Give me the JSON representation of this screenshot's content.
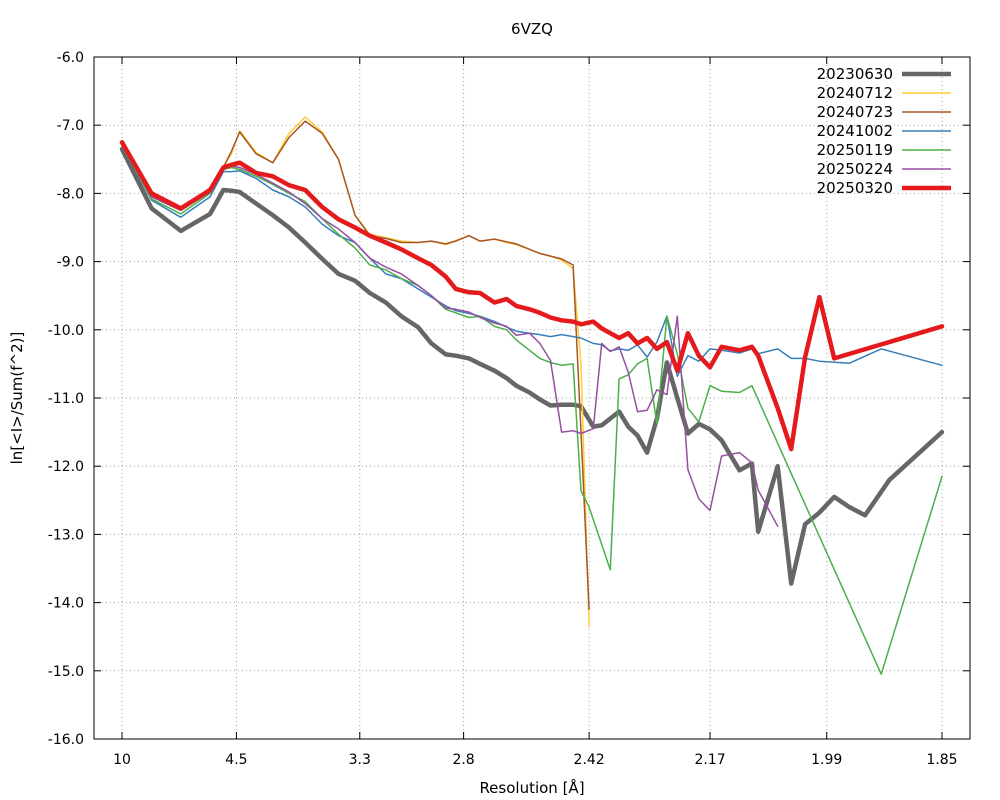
{
  "chart_data": {
    "type": "line",
    "title": "6VZQ",
    "xlabel": "Resolution [Å]",
    "ylabel": "ln[<I>/Sum(f^2)]",
    "x_scale": "inverse-square",
    "x_ticks": [
      "10",
      "4.5",
      "3.3",
      "2.8",
      "2.42",
      "2.17",
      "1.99",
      "1.85"
    ],
    "xlim": [
      10,
      1.85
    ],
    "ylim": [
      -16.0,
      -6.0
    ],
    "y_ticks": [
      "-6.0",
      "-7.0",
      "-8.0",
      "-9.0",
      "-10.0",
      "-11.0",
      "-12.0",
      "-13.0",
      "-14.0",
      "-15.0",
      "-16.0"
    ],
    "grid": true,
    "legend_position": "top-right",
    "series": [
      {
        "name": "20230630",
        "color": "#666666",
        "width": 4.5,
        "x": [
          10,
          7.04,
          5.75,
          4.98,
          4.72,
          4.58,
          4.45,
          4.22,
          4.02,
          3.85,
          3.7,
          3.56,
          3.44,
          3.33,
          3.24,
          3.15,
          3.07,
          2.99,
          2.93,
          2.87,
          2.83,
          2.78,
          2.74,
          2.69,
          2.65,
          2.62,
          2.58,
          2.55,
          2.52,
          2.49,
          2.46,
          2.44,
          2.41,
          2.39,
          2.37,
          2.35,
          2.33,
          2.31,
          2.29,
          2.27,
          2.25,
          2.23,
          2.21,
          2.19,
          2.17,
          2.15,
          2.12,
          2.1,
          2.09,
          2.06,
          2.04,
          2.02,
          2.0,
          1.98,
          1.96,
          1.94,
          1.91,
          1.85
        ],
        "y": [
          -7.35,
          -8.22,
          -8.55,
          -8.3,
          -7.95,
          -7.96,
          -7.98,
          -8.15,
          -8.32,
          -8.5,
          -8.72,
          -8.96,
          -9.18,
          -9.28,
          -9.46,
          -9.6,
          -9.8,
          -9.96,
          -10.2,
          -10.36,
          -10.38,
          -10.42,
          -10.5,
          -10.6,
          -10.71,
          -10.82,
          -10.92,
          -11.02,
          -11.11,
          -11.1,
          -11.1,
          -11.12,
          -11.42,
          -11.4,
          -11.3,
          -11.2,
          -11.42,
          -11.55,
          -11.8,
          -11.3,
          -10.48,
          -11.0,
          -11.52,
          -11.38,
          -11.46,
          -11.62,
          -12.06,
          -11.96,
          -12.96,
          -12.0,
          -13.72,
          -12.85,
          -12.68,
          -12.45,
          -12.6,
          -12.72,
          -12.2,
          -11.5
        ]
      },
      {
        "name": "20240712",
        "color": "#ffcc33",
        "width": 1.5,
        "x": [
          10,
          7.04,
          5.75,
          4.98,
          4.72,
          4.58,
          4.45,
          4.22,
          4.02,
          3.85,
          3.7,
          3.56,
          3.44,
          3.33,
          3.24,
          3.15,
          3.07,
          2.99,
          2.93,
          2.87,
          2.83,
          2.78,
          2.74,
          2.69,
          2.65,
          2.62,
          2.58,
          2.55,
          2.52,
          2.49,
          2.46,
          2.44,
          2.42
        ],
        "y": [
          -7.25,
          -8.05,
          -8.25,
          -7.95,
          -7.6,
          -7.42,
          -7.08,
          -7.4,
          -7.55,
          -7.12,
          -6.88,
          -7.1,
          -7.5,
          -8.32,
          -8.6,
          -8.65,
          -8.7,
          -8.72,
          -8.7,
          -8.75,
          -8.69,
          -8.62,
          -8.7,
          -8.67,
          -8.72,
          -8.75,
          -8.82,
          -8.88,
          -8.92,
          -8.98,
          -9.1,
          -10.5,
          -14.35
        ]
      },
      {
        "name": "20240723",
        "color": "#a65628",
        "width": 1.5,
        "x": [
          10,
          7.04,
          5.75,
          4.98,
          4.72,
          4.58,
          4.45,
          4.22,
          4.02,
          3.85,
          3.7,
          3.56,
          3.44,
          3.33,
          3.24,
          3.15,
          3.07,
          2.99,
          2.93,
          2.87,
          2.83,
          2.78,
          2.74,
          2.69,
          2.65,
          2.62,
          2.58,
          2.55,
          2.52,
          2.49,
          2.46,
          2.44,
          2.42
        ],
        "y": [
          -7.25,
          -8.03,
          -8.24,
          -7.92,
          -7.62,
          -7.38,
          -7.1,
          -7.42,
          -7.55,
          -7.18,
          -6.94,
          -7.12,
          -7.5,
          -8.32,
          -8.62,
          -8.66,
          -8.72,
          -8.72,
          -8.7,
          -8.74,
          -8.7,
          -8.62,
          -8.7,
          -8.67,
          -8.71,
          -8.74,
          -8.82,
          -8.88,
          -8.92,
          -8.96,
          -9.05,
          -11.5,
          -14.1
        ]
      },
      {
        "name": "20241002",
        "color": "#377eb8",
        "width": 1.5,
        "x": [
          10,
          7.04,
          5.75,
          4.98,
          4.72,
          4.58,
          4.45,
          4.22,
          4.02,
          3.85,
          3.7,
          3.56,
          3.44,
          3.33,
          3.24,
          3.15,
          3.07,
          2.99,
          2.93,
          2.87,
          2.83,
          2.78,
          2.74,
          2.69,
          2.65,
          2.62,
          2.58,
          2.55,
          2.52,
          2.49,
          2.46,
          2.44,
          2.41,
          2.39,
          2.37,
          2.35,
          2.33,
          2.31,
          2.29,
          2.27,
          2.25,
          2.23,
          2.21,
          2.19,
          2.17,
          2.15,
          2.12,
          2.1,
          2.09,
          2.06,
          2.04,
          2.02,
          2.0,
          1.96,
          1.92,
          1.85
        ],
        "y": [
          -7.3,
          -8.1,
          -8.35,
          -8.05,
          -7.68,
          -7.68,
          -7.67,
          -7.78,
          -7.95,
          -8.05,
          -8.2,
          -8.45,
          -8.62,
          -8.72,
          -8.95,
          -9.18,
          -9.25,
          -9.4,
          -9.52,
          -9.65,
          -9.72,
          -9.76,
          -9.8,
          -9.88,
          -9.96,
          -10.02,
          -10.05,
          -10.07,
          -10.1,
          -10.07,
          -10.1,
          -10.12,
          -10.2,
          -10.22,
          -10.31,
          -10.28,
          -10.3,
          -10.22,
          -10.4,
          -10.18,
          -9.8,
          -10.68,
          -10.38,
          -10.46,
          -10.28,
          -10.3,
          -10.34,
          -10.28,
          -10.35,
          -10.28,
          -10.42,
          -10.42,
          -10.46,
          -10.49,
          -10.28,
          -10.52
        ]
      },
      {
        "name": "20250119",
        "color": "#4daf4a",
        "width": 1.5,
        "x": [
          10,
          7.04,
          5.75,
          4.98,
          4.72,
          4.58,
          4.45,
          4.22,
          4.02,
          3.85,
          3.7,
          3.56,
          3.44,
          3.33,
          3.24,
          3.15,
          3.07,
          2.99,
          2.93,
          2.87,
          2.83,
          2.78,
          2.74,
          2.69,
          2.65,
          2.62,
          2.58,
          2.55,
          2.52,
          2.49,
          2.46,
          2.44,
          2.42,
          2.37,
          2.35,
          2.33,
          2.31,
          2.29,
          2.27,
          2.25,
          2.23,
          2.21,
          2.19,
          2.17,
          2.15,
          2.12,
          2.1,
          1.92,
          1.85
        ],
        "y": [
          -7.3,
          -8.08,
          -8.3,
          -8.0,
          -7.65,
          -7.62,
          -7.65,
          -7.75,
          -7.87,
          -8.0,
          -8.12,
          -8.37,
          -8.6,
          -8.8,
          -9.05,
          -9.12,
          -9.25,
          -9.35,
          -9.5,
          -9.7,
          -9.75,
          -9.82,
          -9.8,
          -9.95,
          -10.0,
          -10.15,
          -10.3,
          -10.42,
          -10.48,
          -10.52,
          -10.5,
          -12.36,
          -12.6,
          -13.52,
          -10.72,
          -10.66,
          -10.5,
          -10.42,
          -11.38,
          -9.8,
          -10.35,
          -11.15,
          -11.35,
          -10.82,
          -10.9,
          -10.92,
          -10.82,
          -15.05,
          -12.15
        ]
      },
      {
        "name": "20250224",
        "color": "#984ea3",
        "width": 1.5,
        "x": [
          10,
          7.04,
          5.75,
          4.98,
          4.72,
          4.58,
          4.45,
          4.22,
          4.02,
          3.85,
          3.7,
          3.56,
          3.44,
          3.33,
          3.24,
          3.15,
          3.07,
          2.99,
          2.93,
          2.87,
          2.83,
          2.78,
          2.74,
          2.69,
          2.65,
          2.62,
          2.58,
          2.55,
          2.52,
          2.49,
          2.46,
          2.44,
          2.41,
          2.39,
          2.37,
          2.35,
          2.33,
          2.31,
          2.29,
          2.27,
          2.25,
          2.23,
          2.21,
          2.19,
          2.17,
          2.15,
          2.12,
          2.1,
          2.09,
          2.06
        ],
        "y": [
          -7.3,
          -8.05,
          -8.25,
          -7.98,
          -7.62,
          -7.6,
          -7.62,
          -7.72,
          -7.85,
          -7.98,
          -8.15,
          -8.37,
          -8.52,
          -8.72,
          -8.95,
          -9.08,
          -9.18,
          -9.35,
          -9.5,
          -9.68,
          -9.7,
          -9.74,
          -9.82,
          -9.9,
          -9.95,
          -10.08,
          -10.05,
          -10.2,
          -10.45,
          -11.5,
          -11.48,
          -11.52,
          -11.45,
          -10.2,
          -10.32,
          -10.25,
          -10.62,
          -11.2,
          -11.18,
          -10.88,
          -10.95,
          -9.8,
          -12.05,
          -12.48,
          -12.65,
          -11.85,
          -11.8,
          -11.95,
          -12.35,
          -12.88
        ]
      },
      {
        "name": "20250320",
        "color": "#e41a1c",
        "width": 4.5,
        "x": [
          10,
          7.04,
          5.75,
          4.98,
          4.72,
          4.58,
          4.45,
          4.22,
          4.02,
          3.85,
          3.7,
          3.56,
          3.44,
          3.33,
          3.24,
          3.15,
          3.07,
          2.99,
          2.93,
          2.87,
          2.83,
          2.78,
          2.74,
          2.69,
          2.65,
          2.62,
          2.58,
          2.55,
          2.52,
          2.49,
          2.46,
          2.44,
          2.41,
          2.39,
          2.37,
          2.35,
          2.33,
          2.31,
          2.29,
          2.27,
          2.25,
          2.23,
          2.21,
          2.19,
          2.17,
          2.15,
          2.12,
          2.1,
          2.09,
          2.06,
          2.04,
          2.02,
          2.0,
          1.98,
          1.85
        ],
        "y": [
          -7.25,
          -8.0,
          -8.22,
          -7.95,
          -7.62,
          -7.58,
          -7.55,
          -7.7,
          -7.75,
          -7.88,
          -7.95,
          -8.2,
          -8.38,
          -8.5,
          -8.62,
          -8.72,
          -8.82,
          -8.95,
          -9.05,
          -9.22,
          -9.4,
          -9.45,
          -9.46,
          -9.6,
          -9.55,
          -9.65,
          -9.7,
          -9.75,
          -9.82,
          -9.86,
          -9.88,
          -9.92,
          -9.88,
          -9.98,
          -10.05,
          -10.12,
          -10.05,
          -10.2,
          -10.12,
          -10.28,
          -10.18,
          -10.6,
          -10.05,
          -10.38,
          -10.55,
          -10.25,
          -10.3,
          -10.25,
          -10.38,
          -11.15,
          -11.75,
          -10.4,
          -9.52,
          -10.42,
          -9.95
        ]
      }
    ]
  }
}
